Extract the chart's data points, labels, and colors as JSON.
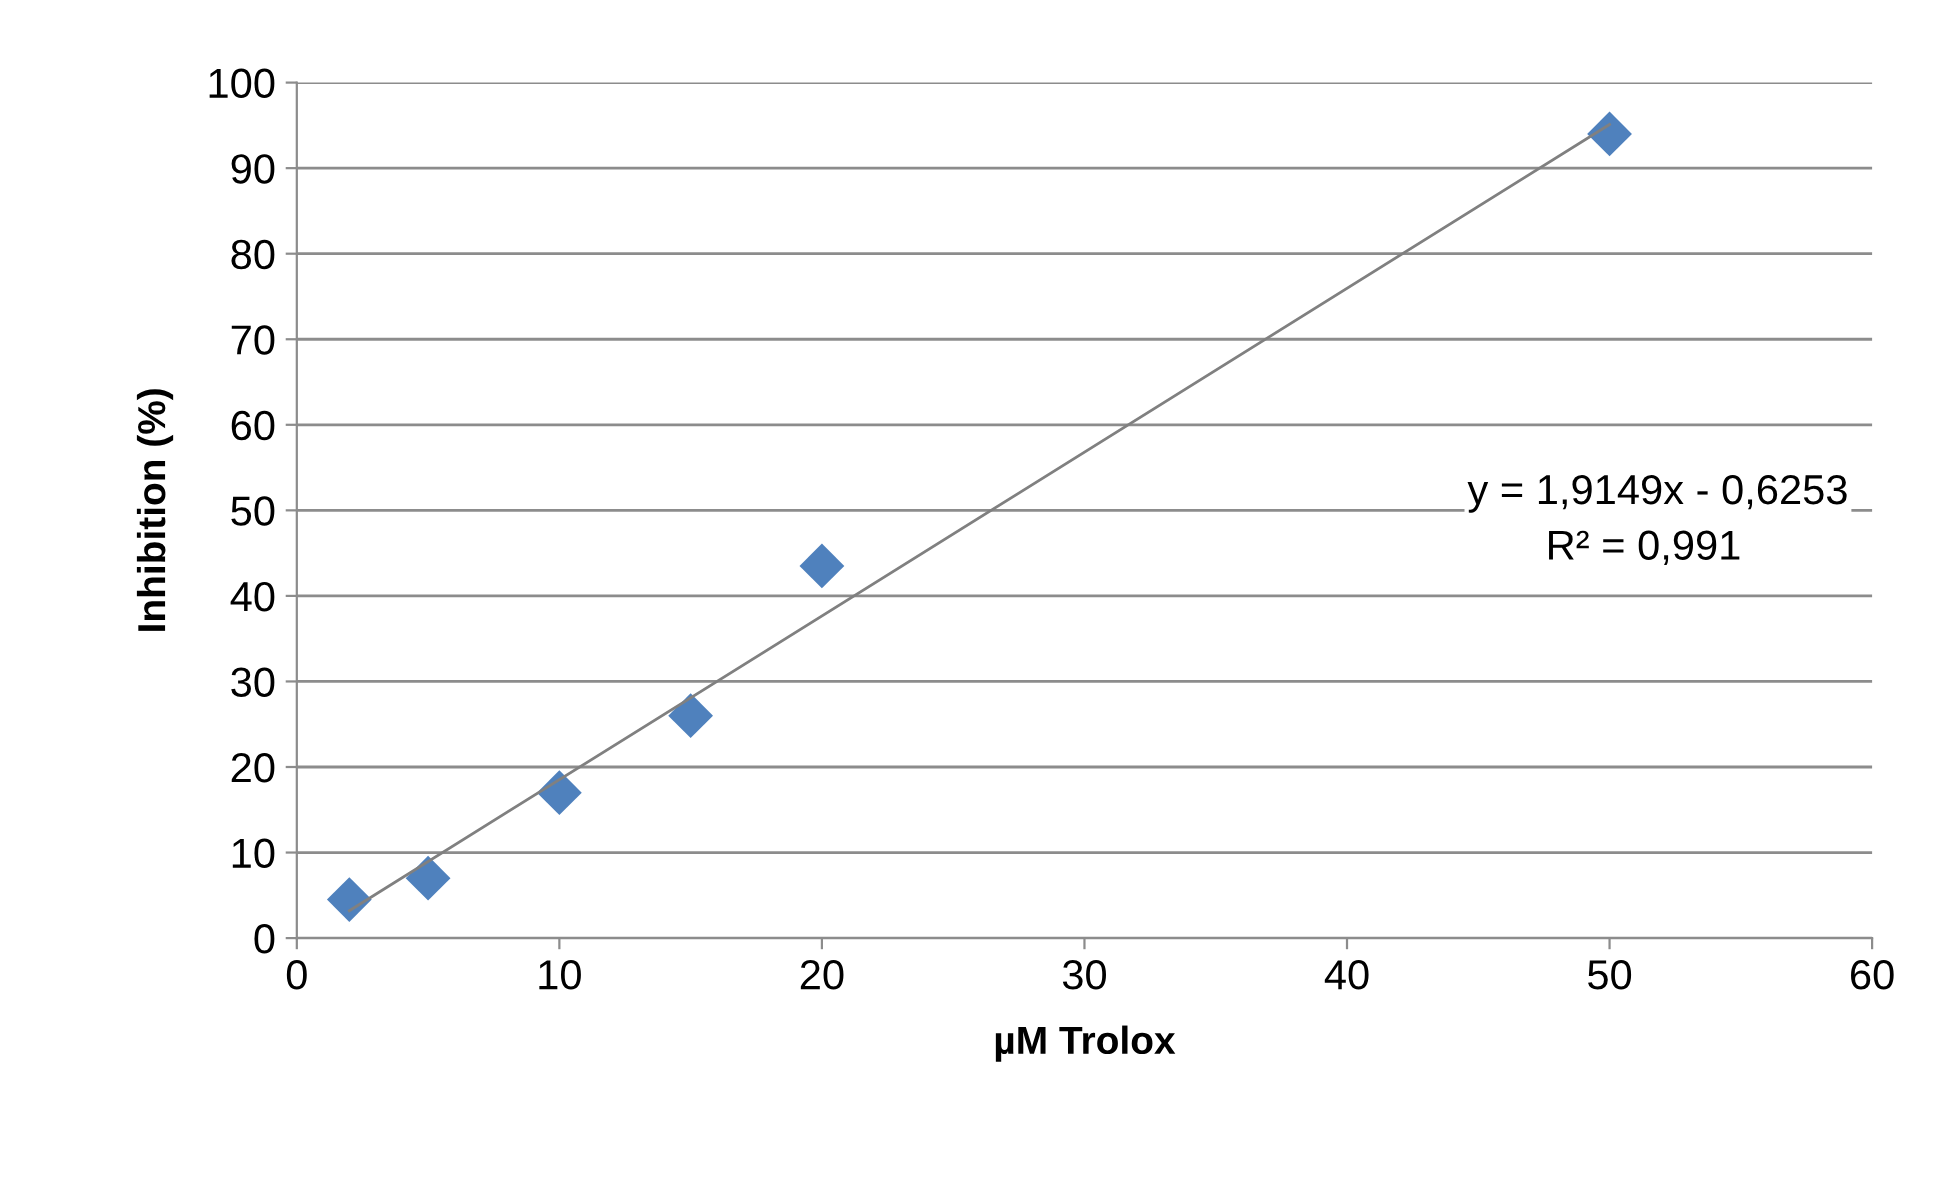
{
  "chart_data": {
    "type": "scatter",
    "xlabel": "µM Trolox",
    "ylabel": "Inhibition (%)",
    "series": [
      {
        "color": "#4f81bd",
        "marker": "diamond",
        "x": [
          2,
          5,
          10,
          15,
          20,
          50
        ],
        "values": [
          4.5,
          7,
          17,
          26,
          43.5,
          94
        ]
      },
      {
        "type": "line",
        "color": "#808080",
        "marker": "none",
        "x": [
          2,
          50
        ],
        "values": [
          3.2,
          95.1
        ]
      }
    ],
    "xlim": [
      0,
      60
    ],
    "xticks": [
      0,
      10,
      20,
      30,
      40,
      50,
      60
    ],
    "ylim": [
      0,
      100
    ],
    "yticks": [
      0,
      10,
      20,
      30,
      40,
      50,
      60,
      70,
      80,
      90,
      100
    ],
    "grid": "y",
    "annotations": [
      "y = 1,9149x - 0,6253",
      "R² = 0,991"
    ]
  }
}
